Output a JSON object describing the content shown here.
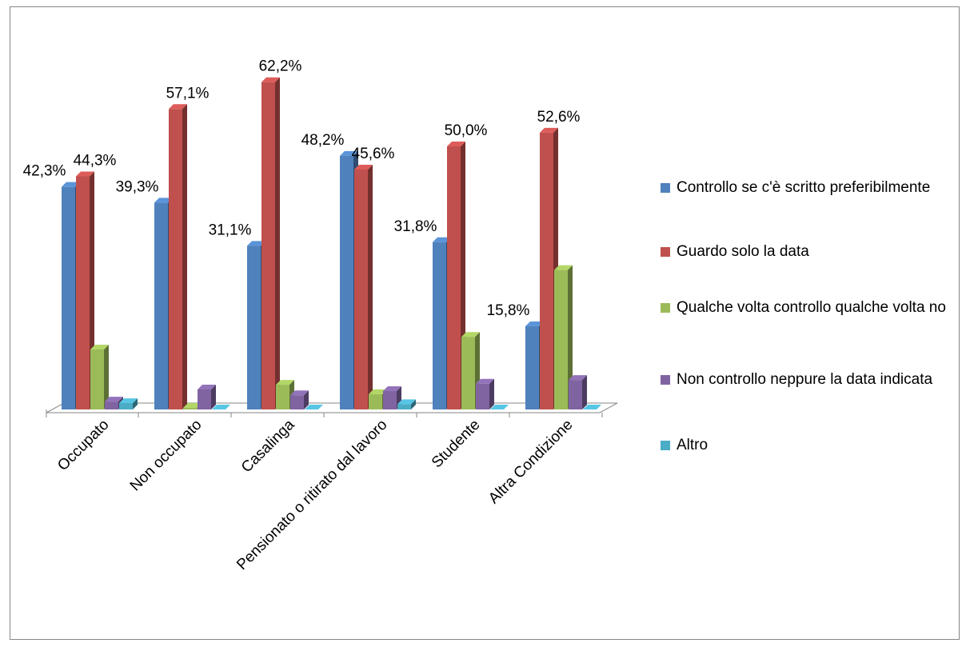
{
  "chart_data": {
    "type": "bar3d",
    "categories": [
      "Occupato",
      "Non occupato",
      "Casalinga",
      "Pensionato o ritirato dal lavoro",
      "Studente",
      "Altra Condizione"
    ],
    "series": [
      {
        "name": "Controllo se c'è scritto preferibilmente",
        "color": "#4f81bd",
        "values": [
          42.3,
          39.3,
          31.1,
          48.2,
          31.8,
          15.8
        ],
        "value_labels": [
          "42,3%",
          "39,3%",
          "31,1%",
          "48,2%",
          "31,8%",
          "15,8%"
        ]
      },
      {
        "name": "Guardo solo la data",
        "color": "#c0504d",
        "values": [
          44.3,
          57.1,
          62.2,
          45.6,
          50.0,
          52.6
        ],
        "value_labels": [
          "44,3%",
          "57,1%",
          "62,2%",
          "45,6%",
          "50,0%",
          "52,6%"
        ]
      },
      {
        "name": "Qualche volta controllo qualche volta no",
        "color": "#9bbb59",
        "values": [
          11.4,
          0.3,
          4.7,
          2.9,
          13.8,
          26.5
        ]
      },
      {
        "name": "Non controllo neppure la data indicata",
        "color": "#8064a2",
        "values": [
          1.5,
          3.8,
          2.7,
          3.5,
          4.9,
          5.6
        ]
      },
      {
        "name": "Altro",
        "color": "#4bacc6",
        "values": [
          1.2,
          0,
          0,
          1.0,
          0,
          0
        ]
      }
    ],
    "legend": "right"
  }
}
